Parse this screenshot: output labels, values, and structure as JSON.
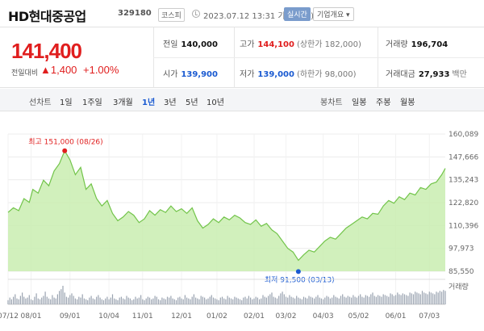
{
  "header": {
    "name": "HD현대중공업",
    "code": "329180",
    "market": "코스피",
    "time": "2023.07.12 13:31 기준(장중)",
    "realtime": "실시간",
    "company_info": "기업개요 ▾"
  },
  "price": {
    "current": "141,400",
    "change_label": "전일대비",
    "change": "▲1,400",
    "change_pct": "+1.00%"
  },
  "stats": {
    "prev_close": {
      "label": "전일",
      "value": "140,000"
    },
    "high": {
      "label": "고가",
      "value": "144,100",
      "sub": "(상한가 182,000)"
    },
    "volume": {
      "label": "거래량",
      "value": "196,704"
    },
    "open": {
      "label": "시가",
      "value": "139,900"
    },
    "low": {
      "label": "저가",
      "value": "139,000",
      "sub": "(하한가 98,000)"
    },
    "trade_value": {
      "label": "거래대금",
      "value": "27,933",
      "unit": "백만"
    }
  },
  "periods": {
    "line_label": "선차트",
    "options": [
      "1일",
      "1주일",
      "3개월",
      "1년",
      "3년",
      "5년",
      "10년"
    ],
    "active": "1년",
    "candle_label": "봉차트",
    "candle_options": [
      "일봉",
      "주봉",
      "월봉"
    ]
  },
  "colors": {
    "up": "#e01e1e",
    "down": "#1a5ad1",
    "area": "#c9edb0",
    "line": "#72c44a"
  },
  "chart_data": {
    "type": "area",
    "y_ticks": [
      "160,089",
      "147,666",
      "135,243",
      "122,820",
      "110,396",
      "97,973",
      "85,550"
    ],
    "ylim": [
      85550,
      160089
    ],
    "x_labels": [
      "07/12",
      "08/01",
      "09/01",
      "10/04",
      "11/01",
      "12/01",
      "01/02",
      "02/01",
      "03/02",
      "04/03",
      "05/02",
      "06/01",
      "07/03"
    ],
    "x_label_positions": [
      0,
      13,
      35,
      57,
      76,
      98,
      118,
      139,
      157,
      178,
      198,
      219,
      238
    ],
    "n_days": 248,
    "max_annotation": {
      "text": "최고 151,000 (08/26",
      "trailing": ")",
      "day": 32,
      "value": 151000
    },
    "min_annotation": {
      "text": "최저 91,500 (03/13)",
      "day": 164,
      "value": 91500
    },
    "volume_label": "거래량",
    "series": [
      {
        "values": [
          [
            0,
            117500
          ],
          [
            3,
            120000
          ],
          [
            6,
            118500
          ],
          [
            9,
            125000
          ],
          [
            12,
            123000
          ],
          [
            14,
            130000
          ],
          [
            17,
            128000
          ],
          [
            20,
            135000
          ],
          [
            23,
            132000
          ],
          [
            26,
            140000
          ],
          [
            29,
            144000
          ],
          [
            32,
            151000
          ],
          [
            35,
            146000
          ],
          [
            38,
            138000
          ],
          [
            41,
            142000
          ],
          [
            44,
            130000
          ],
          [
            47,
            133000
          ],
          [
            50,
            125000
          ],
          [
            53,
            121000
          ],
          [
            56,
            124000
          ],
          [
            59,
            117000
          ],
          [
            62,
            113000
          ],
          [
            65,
            115000
          ],
          [
            68,
            118000
          ],
          [
            71,
            116000
          ],
          [
            74,
            112000
          ],
          [
            77,
            114000
          ],
          [
            80,
            118500
          ],
          [
            83,
            116000
          ],
          [
            86,
            119000
          ],
          [
            89,
            117500
          ],
          [
            92,
            121000
          ],
          [
            95,
            118000
          ],
          [
            98,
            119500
          ],
          [
            101,
            117000
          ],
          [
            104,
            120000
          ],
          [
            107,
            113000
          ],
          [
            110,
            109000
          ],
          [
            113,
            111000
          ],
          [
            116,
            114000
          ],
          [
            119,
            112000
          ],
          [
            122,
            115000
          ],
          [
            125,
            113500
          ],
          [
            128,
            116000
          ],
          [
            131,
            114500
          ],
          [
            134,
            112000
          ],
          [
            137,
            111000
          ],
          [
            140,
            113500
          ],
          [
            143,
            110000
          ],
          [
            146,
            111500
          ],
          [
            149,
            108000
          ],
          [
            152,
            106000
          ],
          [
            155,
            102000
          ],
          [
            158,
            98000
          ],
          [
            161,
            96000
          ],
          [
            164,
            91500
          ],
          [
            167,
            94500
          ],
          [
            170,
            97000
          ],
          [
            173,
            96000
          ],
          [
            176,
            99000
          ],
          [
            179,
            102000
          ],
          [
            182,
            104000
          ],
          [
            185,
            103000
          ],
          [
            188,
            106000
          ],
          [
            191,
            109000
          ],
          [
            194,
            111000
          ],
          [
            197,
            113000
          ],
          [
            200,
            115000
          ],
          [
            203,
            114000
          ],
          [
            206,
            117000
          ],
          [
            209,
            116500
          ],
          [
            212,
            121000
          ],
          [
            215,
            124000
          ],
          [
            218,
            122500
          ],
          [
            221,
            126000
          ],
          [
            224,
            124500
          ],
          [
            227,
            128000
          ],
          [
            230,
            127000
          ],
          [
            233,
            131000
          ],
          [
            236,
            130000
          ],
          [
            239,
            133000
          ],
          [
            242,
            134000
          ],
          [
            245,
            138000
          ],
          [
            247,
            141400
          ]
        ]
      }
    ],
    "volume": [
      5,
      8,
      6,
      9,
      12,
      7,
      6,
      10,
      14,
      9,
      7,
      8,
      11,
      6,
      5,
      9,
      13,
      7,
      6,
      8,
      10,
      15,
      9,
      7,
      6,
      11,
      8,
      7,
      12,
      16,
      18,
      22,
      14,
      9,
      8,
      11,
      13,
      10,
      7,
      6,
      9,
      8,
      12,
      7,
      6,
      5,
      8,
      10,
      7,
      6,
      9,
      11,
      8,
      6,
      5,
      7,
      9,
      6,
      8,
      12,
      7,
      6,
      5,
      8,
      9,
      7,
      6,
      10,
      8,
      7,
      5,
      6,
      9,
      7,
      8,
      11,
      6,
      5,
      7,
      9,
      8,
      6,
      7,
      10,
      9,
      6,
      5,
      8,
      7,
      6,
      9,
      8,
      10,
      7,
      6,
      5,
      8,
      9,
      7,
      6,
      11,
      8,
      7,
      6,
      9,
      12,
      8,
      7,
      6,
      10,
      9,
      8,
      6,
      7,
      9,
      11,
      8,
      7,
      6,
      5,
      8,
      9,
      7,
      6,
      10,
      8,
      7,
      6,
      9,
      8,
      7,
      6,
      5,
      8,
      9,
      7,
      10,
      8,
      6,
      7,
      9,
      8,
      6,
      7,
      11,
      9,
      8,
      10,
      12,
      14,
      9,
      8,
      7,
      10,
      13,
      15,
      12,
      9,
      8,
      11,
      9,
      8,
      7,
      10,
      8,
      7,
      6,
      9,
      8,
      7,
      10,
      9,
      8,
      7,
      9,
      11,
      8,
      7,
      6,
      8,
      10,
      9,
      7,
      8,
      11,
      9,
      8,
      7,
      10,
      12,
      9,
      8,
      10,
      9,
      8,
      11,
      9,
      8,
      10,
      12,
      9,
      8,
      11,
      10,
      9,
      12,
      14,
      10,
      9,
      11,
      10,
      9,
      12,
      11,
      10,
      9,
      13,
      12,
      10,
      11,
      14,
      12,
      11,
      13,
      12,
      11,
      10,
      14,
      13,
      12,
      15,
      14,
      13,
      12,
      16,
      14,
      13,
      12,
      15,
      14,
      13,
      12,
      15,
      14,
      16,
      15,
      17,
      16
    ]
  }
}
